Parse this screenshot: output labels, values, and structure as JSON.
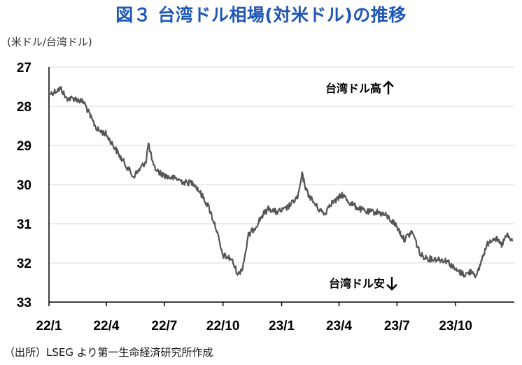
{
  "header": {
    "title": "図３ 台湾ドル相場(対米ドル)の推移",
    "unit_label": "(米ドル/台湾ドル)"
  },
  "footer": {
    "source": "（出所）LSEG より第一生命経済研究所作成"
  },
  "chart_data": {
    "type": "line",
    "title": "図３ 台湾ドル相場(対米ドル)の推移",
    "xlabel": "",
    "ylabel": "(米ドル/台湾ドル)",
    "y_inverted": true,
    "ylim": [
      27,
      33
    ],
    "yticks": [
      "27",
      "28",
      "29",
      "30",
      "31",
      "32",
      "33"
    ],
    "xticks": [
      "22/1",
      "22/4",
      "22/7",
      "22/10",
      "23/1",
      "23/4",
      "23/7",
      "23/10"
    ],
    "x_range_months": [
      "2022-01",
      "2023-12"
    ],
    "grid": "horizontal",
    "line_color": "#555555",
    "annotations": {
      "strong": "台湾ドル高",
      "weak": "台湾ドル安"
    },
    "series": [
      {
        "values": [
          [
            "2022-01-03",
            27.68
          ],
          [
            "2022-01-12",
            27.6
          ],
          [
            "2022-01-20",
            27.55
          ],
          [
            "2022-01-28",
            27.8
          ],
          [
            "2022-02-10",
            27.8
          ],
          [
            "2022-02-25",
            27.9
          ],
          [
            "2022-03-08",
            28.3
          ],
          [
            "2022-03-18",
            28.6
          ],
          [
            "2022-03-31",
            28.7
          ],
          [
            "2022-04-12",
            29.0
          ],
          [
            "2022-04-25",
            29.35
          ],
          [
            "2022-05-06",
            29.6
          ],
          [
            "2022-05-13",
            29.8
          ],
          [
            "2022-05-24",
            29.6
          ],
          [
            "2022-06-02",
            29.4
          ],
          [
            "2022-06-06",
            28.95
          ],
          [
            "2022-06-14",
            29.55
          ],
          [
            "2022-06-24",
            29.7
          ],
          [
            "2022-07-06",
            29.8
          ],
          [
            "2022-07-20",
            29.85
          ],
          [
            "2022-08-02",
            29.95
          ],
          [
            "2022-08-16",
            29.95
          ],
          [
            "2022-08-26",
            30.2
          ],
          [
            "2022-09-08",
            30.55
          ],
          [
            "2022-09-20",
            31.1
          ],
          [
            "2022-09-30",
            31.8
          ],
          [
            "2022-10-14",
            31.9
          ],
          [
            "2022-10-25",
            32.3
          ],
          [
            "2022-11-01",
            32.1
          ],
          [
            "2022-11-10",
            31.3
          ],
          [
            "2022-11-22",
            31.05
          ],
          [
            "2022-12-01",
            30.8
          ],
          [
            "2022-12-12",
            30.6
          ],
          [
            "2022-12-23",
            30.7
          ],
          [
            "2023-01-05",
            30.65
          ],
          [
            "2023-01-16",
            30.5
          ],
          [
            "2023-01-27",
            30.3
          ],
          [
            "2023-02-02",
            29.75
          ],
          [
            "2023-02-10",
            30.2
          ],
          [
            "2023-02-22",
            30.5
          ],
          [
            "2023-03-02",
            30.65
          ],
          [
            "2023-03-10",
            30.75
          ],
          [
            "2023-03-17",
            30.5
          ],
          [
            "2023-03-28",
            30.4
          ],
          [
            "2023-04-06",
            30.25
          ],
          [
            "2023-04-17",
            30.45
          ],
          [
            "2023-05-01",
            30.6
          ],
          [
            "2023-05-15",
            30.7
          ],
          [
            "2023-06-01",
            30.7
          ],
          [
            "2023-06-15",
            30.8
          ],
          [
            "2023-06-30",
            31.05
          ],
          [
            "2023-07-12",
            31.4
          ],
          [
            "2023-07-25",
            31.2
          ],
          [
            "2023-08-07",
            31.8
          ],
          [
            "2023-08-21",
            31.9
          ],
          [
            "2023-09-04",
            31.9
          ],
          [
            "2023-09-18",
            31.95
          ],
          [
            "2023-10-02",
            32.2
          ],
          [
            "2023-10-16",
            32.3
          ],
          [
            "2023-10-27",
            32.2
          ],
          [
            "2023-11-03",
            32.35
          ],
          [
            "2023-11-13",
            31.8
          ],
          [
            "2023-11-22",
            31.45
          ],
          [
            "2023-12-01",
            31.35
          ],
          [
            "2023-12-12",
            31.55
          ],
          [
            "2023-12-20",
            31.3
          ],
          [
            "2023-12-29",
            31.45
          ]
        ]
      }
    ]
  }
}
